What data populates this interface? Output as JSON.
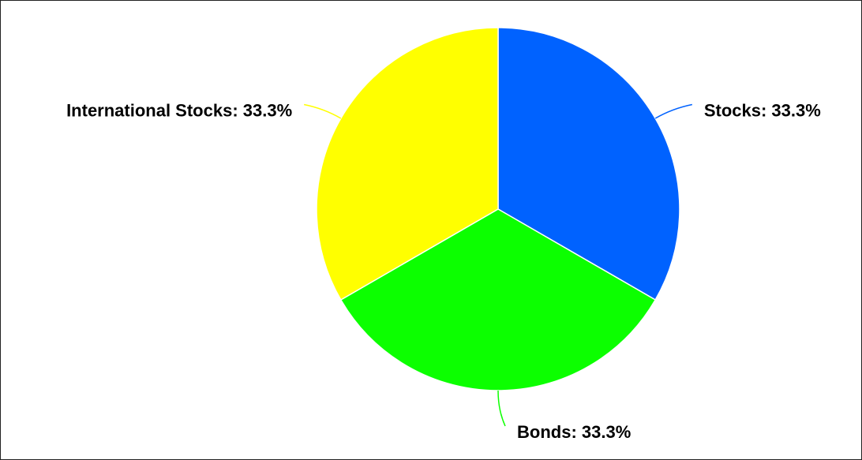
{
  "chart_data": {
    "type": "pie",
    "values": [
      33.3,
      33.3,
      33.3
    ],
    "value_labels": [
      "Stocks: 33.3%",
      "Bonds: 33.3%",
      "International Stocks: 33.3%"
    ],
    "colors": [
      "#0062ff",
      "#0cff00",
      "#ffff00"
    ]
  }
}
